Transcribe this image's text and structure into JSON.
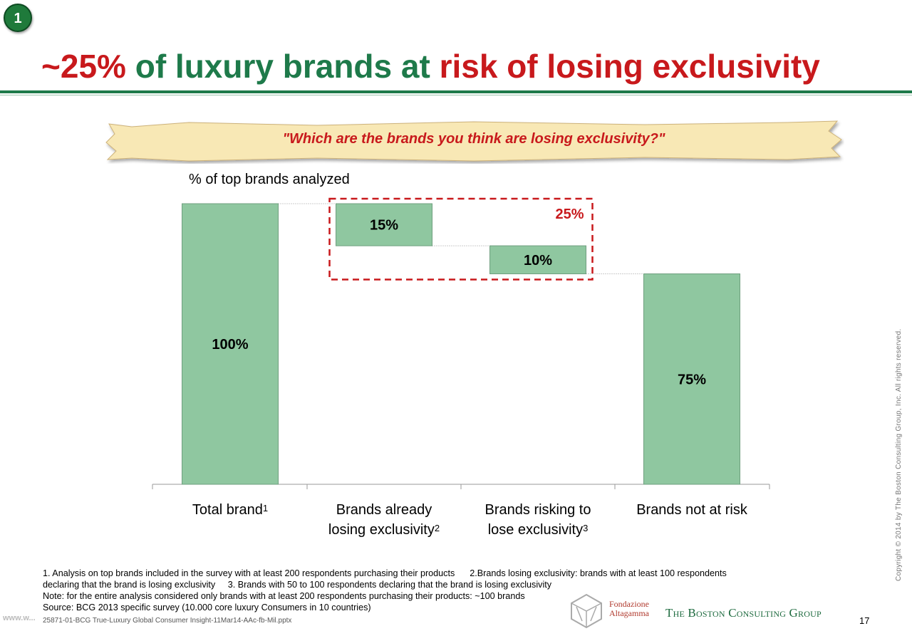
{
  "badge": "1",
  "title": {
    "part1": "~25%",
    "part2": " of luxury brands at ",
    "part3": "risk of losing exclusivity"
  },
  "question": "\"Which are the brands you think are losing exclusivity?\"",
  "colors": {
    "bar": "#8fc7a0",
    "accent_red": "#c8191c",
    "brand_green": "#1e7a4a"
  },
  "chart_data": {
    "type": "bar",
    "subtype": "waterfall",
    "unit_label": "% of top brands analyzed",
    "categories": [
      "Total brand",
      "Brands already losing exclusivity",
      "Brands risking to lose exclusivity",
      "Brands not at risk"
    ],
    "category_lines": [
      {
        "lines": [
          "Total brand"
        ],
        "sup": "1"
      },
      {
        "lines": [
          "Brands already",
          "losing exclusivity"
        ],
        "sup": "2"
      },
      {
        "lines": [
          "Brands risking to",
          "lose exclusivity"
        ],
        "sup": "3"
      },
      {
        "lines": [
          "Brands not at risk"
        ],
        "sup": ""
      }
    ],
    "values": [
      100,
      -15,
      -10,
      75
    ],
    "data_labels": [
      "100%",
      "15%",
      "10%",
      "75%"
    ],
    "ylim": [
      0,
      100
    ],
    "annotation": "25%"
  },
  "footnotes": {
    "line1": "1. Analysis on top brands included in the survey with at least 200 respondents purchasing their products      2.Brands losing exclusivity: brands with at least 100 respondents",
    "line2": "declaring that the brand is losing exclusivity     3. Brands with 50 to 100 respondents declaring that the brand is losing exclusivity",
    "line3": "Note: for the entire analysis considered only brands with at least 200 respondents purchasing their products: ~100 brands",
    "line4": "Source: BCG 2013 specific survey (10.000 core luxury Consumers in 10 countries)"
  },
  "file_name": "25871-01-BCG True-Luxury Global Consumer Insight-11Mar14-AAc-fb-Mil.pptx",
  "watermark": "www.w...",
  "page_number": "17",
  "copyright": "Copyright © 2014 by The Boston Consulting Group, Inc. All rights reserved.",
  "logos": {
    "altagamma_line1": "Fondazione",
    "altagamma_line2": "Altagamma",
    "bcg": "The Boston Consulting Group"
  }
}
